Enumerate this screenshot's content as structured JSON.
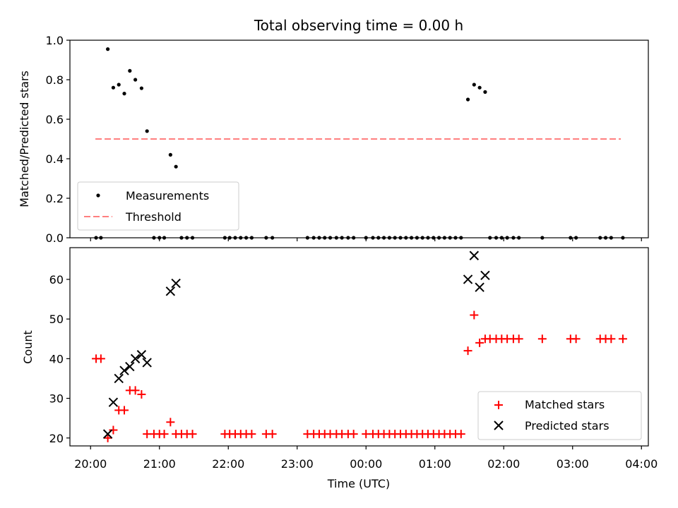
{
  "chart_data": [
    {
      "type": "scatter",
      "title": "Total observing time = 0.00 h",
      "ylabel": "Matched/Predicted stars",
      "xlabel": "",
      "ylim": [
        0,
        1.0
      ],
      "yticks": [
        "0.0",
        "0.2",
        "0.4",
        "0.6",
        "0.8",
        "1.0"
      ],
      "legend_position": "lower-left",
      "threshold": {
        "name": "Threshold",
        "value": 0.5,
        "x_start": 20.07,
        "x_end": 27.7,
        "color": "#ff7f7f"
      },
      "series": [
        {
          "name": "Measurements",
          "color": "#000000",
          "points": [
            [
              20.08,
              0
            ],
            [
              20.15,
              0
            ],
            [
              20.25,
              0.955
            ],
            [
              20.33,
              0.76
            ],
            [
              20.41,
              0.775
            ],
            [
              20.49,
              0.73
            ],
            [
              20.57,
              0.845
            ],
            [
              20.65,
              0.8
            ],
            [
              20.74,
              0.757
            ],
            [
              20.82,
              0.54
            ],
            [
              20.92,
              0
            ],
            [
              21.0,
              0
            ],
            [
              21.07,
              0
            ],
            [
              21.16,
              0.42
            ],
            [
              21.24,
              0.36
            ],
            [
              21.32,
              0
            ],
            [
              21.4,
              0
            ],
            [
              21.48,
              0
            ],
            [
              21.95,
              0
            ],
            [
              22.02,
              0
            ],
            [
              22.1,
              0
            ],
            [
              22.18,
              0
            ],
            [
              22.26,
              0
            ],
            [
              22.34,
              0
            ],
            [
              22.55,
              0
            ],
            [
              22.64,
              0
            ],
            [
              23.15,
              0
            ],
            [
              23.24,
              0
            ],
            [
              23.32,
              0
            ],
            [
              23.4,
              0
            ],
            [
              23.48,
              0
            ],
            [
              23.57,
              0
            ],
            [
              23.65,
              0
            ],
            [
              23.74,
              0
            ],
            [
              23.82,
              0
            ],
            [
              24.0,
              0
            ],
            [
              24.1,
              0
            ],
            [
              24.18,
              0
            ],
            [
              24.26,
              0
            ],
            [
              24.34,
              0
            ],
            [
              24.42,
              0
            ],
            [
              24.5,
              0
            ],
            [
              24.58,
              0
            ],
            [
              24.66,
              0
            ],
            [
              24.74,
              0
            ],
            [
              24.82,
              0
            ],
            [
              24.9,
              0
            ],
            [
              24.98,
              0
            ],
            [
              25.06,
              0
            ],
            [
              25.14,
              0
            ],
            [
              25.22,
              0
            ],
            [
              25.3,
              0
            ],
            [
              25.38,
              0
            ],
            [
              25.48,
              0.7
            ],
            [
              25.57,
              0.775
            ],
            [
              25.65,
              0.76
            ],
            [
              25.73,
              0.738
            ],
            [
              25.8,
              0
            ],
            [
              25.89,
              0
            ],
            [
              25.97,
              0
            ],
            [
              26.05,
              0
            ],
            [
              26.14,
              0
            ],
            [
              26.22,
              0
            ],
            [
              26.56,
              0
            ],
            [
              26.97,
              0
            ],
            [
              27.05,
              0
            ],
            [
              27.4,
              0
            ],
            [
              27.48,
              0
            ],
            [
              27.56,
              0
            ],
            [
              27.73,
              0
            ]
          ]
        }
      ]
    },
    {
      "type": "scatter",
      "title": "",
      "xlabel": "Time (UTC)",
      "ylabel": "Count",
      "xlim": [
        19.7,
        28.1
      ],
      "ylim": [
        18,
        68
      ],
      "x_tick_values": [
        20,
        21,
        22,
        23,
        24,
        25,
        26,
        27,
        28
      ],
      "x_tick_labels": [
        "20:00",
        "21:00",
        "22:00",
        "23:00",
        "00:00",
        "01:00",
        "02:00",
        "03:00",
        "04:00"
      ],
      "y_tick_values": [
        20,
        30,
        40,
        50,
        60
      ],
      "y_tick_labels": [
        "20",
        "30",
        "40",
        "50",
        "60"
      ],
      "legend_position": "lower-right",
      "series": [
        {
          "name": "Matched stars",
          "marker": "plus",
          "color": "#ff0000",
          "points": [
            [
              20.08,
              40
            ],
            [
              20.15,
              40
            ],
            [
              20.25,
              20
            ],
            [
              20.33,
              22
            ],
            [
              20.41,
              27
            ],
            [
              20.49,
              27
            ],
            [
              20.57,
              32
            ],
            [
              20.65,
              32
            ],
            [
              20.74,
              31
            ],
            [
              20.82,
              21
            ],
            [
              20.92,
              21
            ],
            [
              21.0,
              21
            ],
            [
              21.07,
              21
            ],
            [
              21.16,
              24
            ],
            [
              21.24,
              21
            ],
            [
              21.32,
              21
            ],
            [
              21.4,
              21
            ],
            [
              21.48,
              21
            ],
            [
              21.95,
              21
            ],
            [
              22.02,
              21
            ],
            [
              22.1,
              21
            ],
            [
              22.18,
              21
            ],
            [
              22.26,
              21
            ],
            [
              22.34,
              21
            ],
            [
              22.55,
              21
            ],
            [
              22.64,
              21
            ],
            [
              23.15,
              21
            ],
            [
              23.24,
              21
            ],
            [
              23.32,
              21
            ],
            [
              23.4,
              21
            ],
            [
              23.48,
              21
            ],
            [
              23.57,
              21
            ],
            [
              23.65,
              21
            ],
            [
              23.74,
              21
            ],
            [
              23.82,
              21
            ],
            [
              24.0,
              21
            ],
            [
              24.1,
              21
            ],
            [
              24.18,
              21
            ],
            [
              24.26,
              21
            ],
            [
              24.34,
              21
            ],
            [
              24.42,
              21
            ],
            [
              24.5,
              21
            ],
            [
              24.58,
              21
            ],
            [
              24.66,
              21
            ],
            [
              24.74,
              21
            ],
            [
              24.82,
              21
            ],
            [
              24.9,
              21
            ],
            [
              24.98,
              21
            ],
            [
              25.06,
              21
            ],
            [
              25.14,
              21
            ],
            [
              25.22,
              21
            ],
            [
              25.3,
              21
            ],
            [
              25.38,
              21
            ],
            [
              25.48,
              42
            ],
            [
              25.57,
              51
            ],
            [
              25.65,
              44
            ],
            [
              25.73,
              45
            ],
            [
              25.8,
              45
            ],
            [
              25.89,
              45
            ],
            [
              25.97,
              45
            ],
            [
              26.05,
              45
            ],
            [
              26.14,
              45
            ],
            [
              26.22,
              45
            ],
            [
              26.56,
              45
            ],
            [
              26.97,
              45
            ],
            [
              27.05,
              45
            ],
            [
              27.4,
              45
            ],
            [
              27.48,
              45
            ],
            [
              27.56,
              45
            ],
            [
              27.73,
              45
            ]
          ]
        },
        {
          "name": "Predicted stars",
          "marker": "x",
          "color": "#000000",
          "points": [
            [
              20.25,
              21
            ],
            [
              20.33,
              29
            ],
            [
              20.41,
              35
            ],
            [
              20.49,
              37
            ],
            [
              20.57,
              38
            ],
            [
              20.65,
              40
            ],
            [
              20.74,
              41
            ],
            [
              20.82,
              39
            ],
            [
              21.16,
              57
            ],
            [
              21.24,
              59
            ],
            [
              25.48,
              60
            ],
            [
              25.57,
              66
            ],
            [
              25.65,
              58
            ],
            [
              25.73,
              61
            ]
          ]
        }
      ]
    }
  ]
}
